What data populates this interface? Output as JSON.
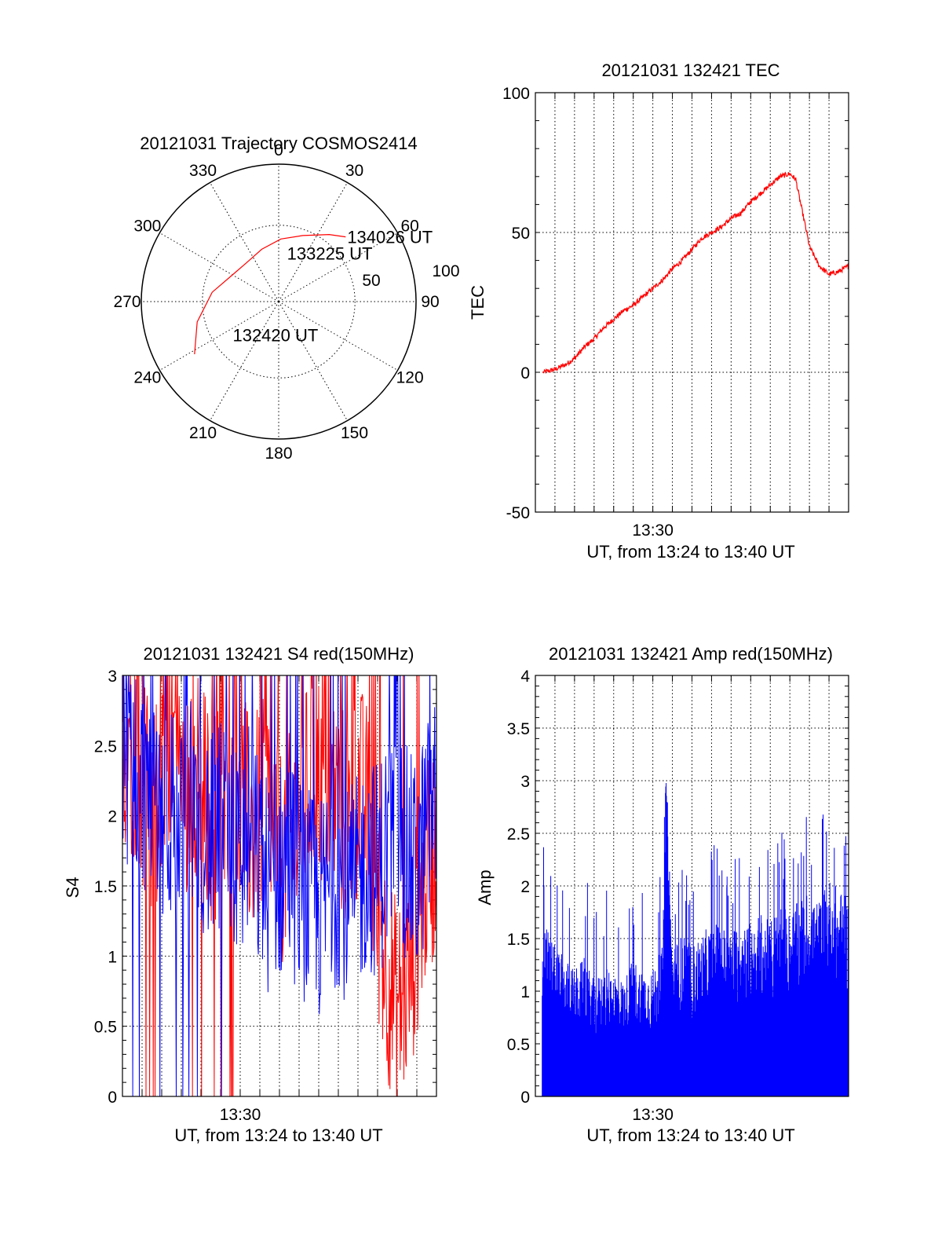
{
  "chart_data": [
    {
      "id": "trajectory",
      "type": "scatter",
      "title": "20121031 Trajectory COSMOS2414",
      "azimuth_labels": [
        "0",
        "30",
        "60",
        "90",
        "120",
        "150",
        "180",
        "210",
        "240",
        "270",
        "300",
        "330"
      ],
      "elevation_labels": [
        "50",
        "100"
      ],
      "track_color": "#ff0000",
      "series": [
        {
          "points": [
            {
              "az": 238,
              "el": 25
            },
            {
              "az": 256,
              "el": 35
            },
            {
              "az": 278,
              "el": 46
            },
            {
              "az": 300,
              "el": 55
            },
            {
              "az": 321,
              "el": 57
            },
            {
              "az": 342,
              "el": 54
            },
            {
              "az": 2,
              "el": 49
            },
            {
              "az": 20,
              "el": 44
            },
            {
              "az": 37,
              "el": 35
            },
            {
              "az": 46,
              "el": 29
            }
          ]
        }
      ],
      "annotations": [
        {
          "text": "134026 UT",
          "az": 46,
          "el": 29
        },
        {
          "text": "133225 UT",
          "az": 8,
          "el": 58
        },
        {
          "text": "132420 UT",
          "az": 235,
          "el": 52
        }
      ]
    },
    {
      "id": "tec",
      "type": "line",
      "title": "20121031 132421 TEC",
      "xlabel": "UT, from 13:24 to 13:40 UT",
      "ylabel": "TEC",
      "xlim": [
        0,
        16
      ],
      "x_ticks": [
        {
          "value": 6,
          "label": "13:30"
        }
      ],
      "ylim": [
        -50,
        100
      ],
      "y_ticks": [
        "-50",
        "0",
        "50",
        "100"
      ],
      "grid": true,
      "line_color": "#ff0000",
      "series": [
        {
          "x": [
            0.4,
            1.0,
            1.6,
            2.0,
            2.5,
            3.0,
            3.5,
            4.0,
            4.5,
            5.0,
            5.5,
            6.0,
            6.5,
            7.0,
            7.5,
            8.0,
            8.5,
            9.0,
            9.5,
            10.0,
            10.5,
            11.0,
            11.5,
            12.0,
            12.5,
            13.0,
            13.3,
            13.5,
            13.8,
            14.0,
            14.5,
            15.0,
            15.5,
            16.0
          ],
          "y": [
            0,
            1,
            3,
            5,
            9,
            12,
            16,
            19,
            22,
            24,
            27,
            30,
            33,
            37,
            40,
            44,
            48,
            50,
            52,
            55,
            57,
            61,
            64,
            67,
            70,
            71,
            69,
            62,
            52,
            45,
            38,
            35,
            36,
            38
          ]
        }
      ]
    },
    {
      "id": "s4",
      "type": "line",
      "title": "20121031 132421 S4 red(150MHz)",
      "xlabel": "UT, from 13:24 to 13:40 UT",
      "ylabel": "S4",
      "xlim": [
        0,
        16
      ],
      "x_ticks": [
        {
          "value": 6,
          "label": "13:30"
        }
      ],
      "ylim": [
        0,
        3
      ],
      "y_ticks": [
        "0",
        "0.5",
        "1",
        "1.5",
        "2",
        "2.5",
        "3"
      ],
      "grid": true,
      "series_colors": [
        "#ff0000",
        "#0000ff"
      ],
      "series": [
        {
          "color": "#ff0000",
          "x": [
            0,
            0.5,
            1,
            1.5,
            2,
            2.5,
            3,
            3.5,
            4,
            4.5,
            5,
            5.5,
            6,
            6.5,
            7,
            7.5,
            8,
            8.5,
            9,
            9.5,
            10,
            10.5,
            11,
            11.5,
            12,
            12.5,
            13,
            13.5,
            14,
            14.5,
            15,
            15.5,
            16
          ],
          "y": [
            2.6,
            2.5,
            2.3,
            1.9,
            2.4,
            2.6,
            2.2,
            2.3,
            2.2,
            2.0,
            2.1,
            2.0,
            2.2,
            1.9,
            2.0,
            2.1,
            1.7,
            1.8,
            2.0,
            2.2,
            2.3,
            2.2,
            2.1,
            1.9,
            2.2,
            2.0,
            1.3,
            0.9,
            0.6,
            0.8,
            1.2,
            1.6,
            1.8
          ]
        },
        {
          "color": "#0000ff",
          "x": [
            0,
            0.5,
            1,
            1.5,
            2,
            2.5,
            3,
            3.5,
            4,
            4.5,
            5,
            5.5,
            6,
            6.5,
            7,
            7.5,
            8,
            8.5,
            9,
            9.5,
            10,
            10.5,
            11,
            11.5,
            12,
            12.5,
            13,
            13.5,
            14,
            14.5,
            15,
            15.5,
            16
          ],
          "y": [
            2.5,
            2.4,
            2.2,
            2.3,
            2.1,
            2.0,
            1.9,
            2.1,
            2.0,
            1.8,
            1.9,
            1.8,
            1.7,
            1.9,
            1.6,
            1.5,
            1.6,
            1.7,
            1.5,
            1.4,
            1.3,
            1.5,
            1.6,
            1.4,
            1.5,
            1.7,
            1.6,
            1.8,
            2.0,
            1.7,
            1.6,
            1.9,
            2.1
          ]
        }
      ]
    },
    {
      "id": "amp",
      "type": "bar",
      "title": "20121031 132421 Amp red(150MHz)",
      "xlabel": "UT, from 13:24 to 13:40 UT",
      "ylabel": "Amp",
      "xlim": [
        0,
        16
      ],
      "x_ticks": [
        {
          "value": 6,
          "label": "13:30"
        }
      ],
      "ylim": [
        0,
        4
      ],
      "y_ticks": [
        "0",
        "0.5",
        "1",
        "1.5",
        "2",
        "2.5",
        "3",
        "3.5",
        "4"
      ],
      "grid": true,
      "bar_color": "#0000ff",
      "series": [
        {
          "x": [
            0.5,
            1,
            1.5,
            2,
            2.5,
            3,
            3.5,
            4,
            4.5,
            5,
            5.5,
            6,
            6.5,
            6.7,
            7,
            7.5,
            8,
            8.5,
            9,
            9.5,
            10,
            10.5,
            11,
            11.5,
            12,
            12.5,
            13,
            13.5,
            14,
            14.5,
            15,
            15.5,
            16
          ],
          "y": [
            1.5,
            1.3,
            1.2,
            1.1,
            1.2,
            1.0,
            1.1,
            1.1,
            1.0,
            1.2,
            1.1,
            1.1,
            1.3,
            2.9,
            1.3,
            1.4,
            1.3,
            1.4,
            1.5,
            1.5,
            1.4,
            1.6,
            1.5,
            1.6,
            1.5,
            1.7,
            1.6,
            1.7,
            1.8,
            1.7,
            1.9,
            1.8,
            1.7
          ]
        }
      ]
    }
  ]
}
